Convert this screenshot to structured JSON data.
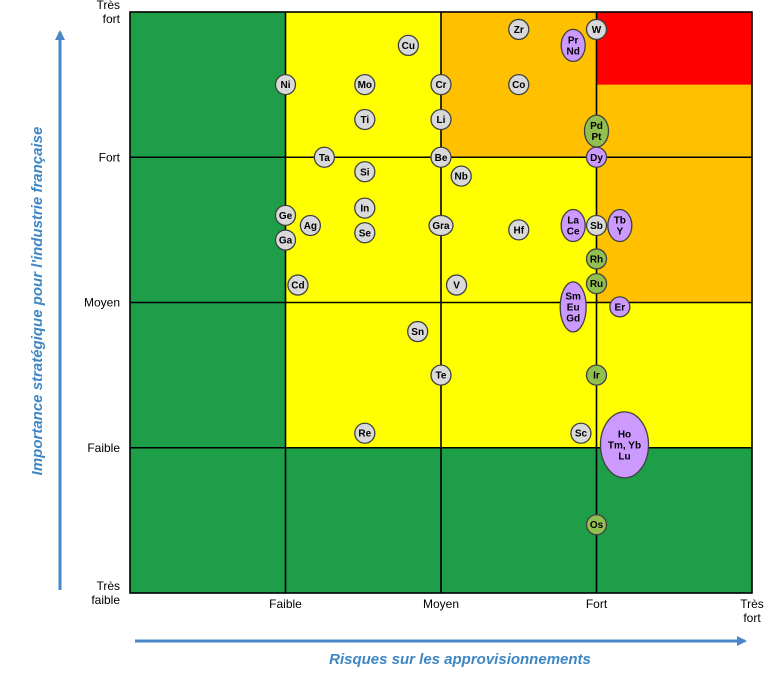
{
  "chart_data": {
    "type": "scatter",
    "xlabel": "Risques sur les approvisionnements",
    "ylabel": "Importance stratégique pour l'industrie française",
    "xlim": [
      0,
      4
    ],
    "ylim": [
      0,
      4
    ],
    "x_ticks": [
      {
        "v": 1,
        "lines": [
          "Faible"
        ]
      },
      {
        "v": 2,
        "lines": [
          "Moyen"
        ]
      },
      {
        "v": 3,
        "lines": [
          "Fort"
        ]
      },
      {
        "v": 4,
        "lines": [
          "Très",
          "fort"
        ]
      }
    ],
    "y_ticks": [
      {
        "v": 0,
        "lines": [
          "Très",
          "faible"
        ]
      },
      {
        "v": 1,
        "lines": [
          "Faible"
        ]
      },
      {
        "v": 2,
        "lines": [
          "Moyen"
        ]
      },
      {
        "v": 3,
        "lines": [
          "Fort"
        ]
      },
      {
        "v": 4,
        "lines": [
          "Très",
          "fort"
        ]
      }
    ],
    "zone_colors": {
      "green": "#1e9e48",
      "yellow": "#ffff00",
      "orange": "#ffc000",
      "red": "#ff0000"
    },
    "zones": [
      [
        "green",
        "yellow",
        "orange",
        "red"
      ],
      [
        "green",
        "yellow",
        "orange",
        "orange"
      ],
      [
        "green",
        "yellow",
        "yellow",
        "orange"
      ],
      [
        "green",
        "yellow",
        "yellow",
        "yellow"
      ],
      [
        "green",
        "green",
        "green",
        "green"
      ]
    ],
    "category_colors": {
      "grey": "#d9d9d9",
      "purple": "#cc99ff",
      "olive": "#92c050"
    },
    "points": [
      {
        "id": "zr",
        "labels": [
          "Zr"
        ],
        "x": 2.5,
        "y": 3.88,
        "cat": "grey"
      },
      {
        "id": "w",
        "labels": [
          "W"
        ],
        "x": 3.0,
        "y": 3.88,
        "cat": "grey"
      },
      {
        "id": "pr-nd",
        "labels": [
          "Pr",
          "Nd"
        ],
        "x": 2.85,
        "y": 3.77,
        "cat": "purple"
      },
      {
        "id": "cu",
        "labels": [
          "Cu"
        ],
        "x": 1.79,
        "y": 3.77,
        "cat": "grey"
      },
      {
        "id": "ni",
        "labels": [
          "Ni"
        ],
        "x": 1.0,
        "y": 3.5,
        "cat": "grey"
      },
      {
        "id": "mo",
        "labels": [
          "Mo"
        ],
        "x": 1.51,
        "y": 3.5,
        "cat": "grey"
      },
      {
        "id": "cr",
        "labels": [
          "Cr"
        ],
        "x": 2.0,
        "y": 3.5,
        "cat": "grey"
      },
      {
        "id": "co",
        "labels": [
          "Co"
        ],
        "x": 2.5,
        "y": 3.5,
        "cat": "grey"
      },
      {
        "id": "ti",
        "labels": [
          "Ti"
        ],
        "x": 1.51,
        "y": 3.26,
        "cat": "grey"
      },
      {
        "id": "li",
        "labels": [
          "Li"
        ],
        "x": 2.0,
        "y": 3.26,
        "cat": "grey"
      },
      {
        "id": "pd-pt",
        "labels": [
          "Pd",
          "Pt"
        ],
        "x": 3.0,
        "y": 3.18,
        "cat": "olive"
      },
      {
        "id": "ta",
        "labels": [
          "Ta"
        ],
        "x": 1.25,
        "y": 3.0,
        "cat": "grey"
      },
      {
        "id": "be",
        "labels": [
          "Be"
        ],
        "x": 2.0,
        "y": 3.0,
        "cat": "grey"
      },
      {
        "id": "dy",
        "labels": [
          "Dy"
        ],
        "x": 3.0,
        "y": 3.0,
        "cat": "purple"
      },
      {
        "id": "si",
        "labels": [
          "Si"
        ],
        "x": 1.51,
        "y": 2.9,
        "cat": "grey"
      },
      {
        "id": "nb",
        "labels": [
          "Nb"
        ],
        "x": 2.13,
        "y": 2.87,
        "cat": "grey"
      },
      {
        "id": "in",
        "labels": [
          "In"
        ],
        "x": 1.51,
        "y": 2.65,
        "cat": "grey"
      },
      {
        "id": "ge",
        "labels": [
          "Ge"
        ],
        "x": 1.0,
        "y": 2.6,
        "cat": "grey"
      },
      {
        "id": "ag",
        "labels": [
          "Ag"
        ],
        "x": 1.16,
        "y": 2.53,
        "cat": "grey"
      },
      {
        "id": "gra",
        "labels": [
          "Gra"
        ],
        "x": 2.0,
        "y": 2.53,
        "cat": "grey"
      },
      {
        "id": "hf",
        "labels": [
          "Hf"
        ],
        "x": 2.5,
        "y": 2.5,
        "cat": "grey"
      },
      {
        "id": "la-ce",
        "labels": [
          "La",
          "Ce"
        ],
        "x": 2.85,
        "y": 2.53,
        "cat": "purple"
      },
      {
        "id": "sb",
        "labels": [
          "Sb"
        ],
        "x": 3.0,
        "y": 2.53,
        "cat": "grey"
      },
      {
        "id": "tb-y",
        "labels": [
          "Tb",
          "Y"
        ],
        "x": 3.15,
        "y": 2.53,
        "cat": "purple"
      },
      {
        "id": "se",
        "labels": [
          "Se"
        ],
        "x": 1.51,
        "y": 2.48,
        "cat": "grey"
      },
      {
        "id": "ga",
        "labels": [
          "Ga"
        ],
        "x": 1.0,
        "y": 2.43,
        "cat": "grey"
      },
      {
        "id": "rh",
        "labels": [
          "Rh"
        ],
        "x": 3.0,
        "y": 2.3,
        "cat": "olive"
      },
      {
        "id": "cd",
        "labels": [
          "Cd"
        ],
        "x": 1.08,
        "y": 2.12,
        "cat": "grey"
      },
      {
        "id": "v",
        "labels": [
          "V"
        ],
        "x": 2.1,
        "y": 2.12,
        "cat": "grey"
      },
      {
        "id": "ru",
        "labels": [
          "Ru"
        ],
        "x": 3.0,
        "y": 2.13,
        "cat": "olive"
      },
      {
        "id": "sm-eu-gd",
        "labels": [
          "Sm",
          "Eu",
          "Gd"
        ],
        "x": 2.85,
        "y": 1.97,
        "cat": "purple"
      },
      {
        "id": "er",
        "labels": [
          "Er"
        ],
        "x": 3.15,
        "y": 1.97,
        "cat": "purple"
      },
      {
        "id": "sn",
        "labels": [
          "Sn"
        ],
        "x": 1.85,
        "y": 1.8,
        "cat": "grey"
      },
      {
        "id": "te",
        "labels": [
          "Te"
        ],
        "x": 2.0,
        "y": 1.5,
        "cat": "grey"
      },
      {
        "id": "ir",
        "labels": [
          "Ir"
        ],
        "x": 3.0,
        "y": 1.5,
        "cat": "olive"
      },
      {
        "id": "re",
        "labels": [
          "Re"
        ],
        "x": 1.51,
        "y": 1.1,
        "cat": "grey"
      },
      {
        "id": "sc",
        "labels": [
          "Sc"
        ],
        "x": 2.9,
        "y": 1.1,
        "cat": "grey"
      },
      {
        "id": "ho-tm-yb-lu",
        "labels": [
          "Ho",
          "Tm, Yb",
          "Lu"
        ],
        "x": 3.18,
        "y": 1.02,
        "cat": "purple"
      },
      {
        "id": "os",
        "labels": [
          "Os"
        ],
        "x": 3.0,
        "y": 0.47,
        "cat": "olive"
      }
    ]
  }
}
